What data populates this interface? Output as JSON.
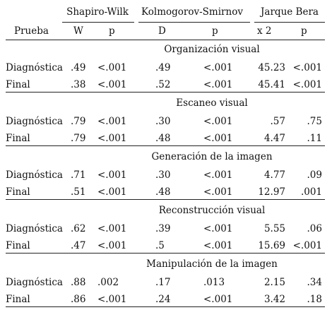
{
  "header": {
    "groups": [
      "Shapiro-Wilk",
      "Kolmogorov-Smirnov",
      "Jarque Bera"
    ],
    "columns": [
      "Prueba",
      "W",
      "p",
      "D",
      "p",
      "x  2",
      "p"
    ]
  },
  "sections": [
    {
      "title": "Organización visual",
      "rows": [
        {
          "prueba": "Diagnóstica",
          "w": ".49",
          "sw_p": "<.001",
          "d": ".49",
          "ks_p": "<.001",
          "x2": "45.23",
          "jb_p": "<.001"
        },
        {
          "prueba": "Final",
          "w": ".38",
          "sw_p": "<.001",
          "d": ".52",
          "ks_p": "<.001",
          "x2": "45.41",
          "jb_p": "<.001"
        }
      ]
    },
    {
      "title": "Escaneo visual",
      "rows": [
        {
          "prueba": "Diagnóstica",
          "w": ".79",
          "sw_p": "<.001",
          "d": ".30",
          "ks_p": "<.001",
          "x2": ".57",
          "jb_p": ".75"
        },
        {
          "prueba": "Final",
          "w": ".79",
          "sw_p": "<.001",
          "d": ".48",
          "ks_p": "<.001",
          "x2": "4.47",
          "jb_p": ".11"
        }
      ]
    },
    {
      "title": "Generación de la imagen",
      "rows": [
        {
          "prueba": "Diagnóstica",
          "w": ".71",
          "sw_p": "<.001",
          "d": ".30",
          "ks_p": "<.001",
          "x2": "4.77",
          "jb_p": ".09"
        },
        {
          "prueba": "Final",
          "w": ".51",
          "sw_p": "<.001",
          "d": ".48",
          "ks_p": "<.001",
          "x2": "12.97",
          "jb_p": ".001"
        }
      ]
    },
    {
      "title": "Reconstrucción visual",
      "rows": [
        {
          "prueba": "Diagnóstica",
          "w": ".62",
          "sw_p": "<.001",
          "d": ".39",
          "ks_p": "<.001",
          "x2": "5.55",
          "jb_p": ".06"
        },
        {
          "prueba": "Final",
          "w": ".47",
          "sw_p": "<.001",
          "d": ".5",
          "ks_p": "<.001",
          "x2": "15.69",
          "jb_p": "<.001"
        }
      ]
    },
    {
      "title": "Manipulación de la imagen",
      "rows": [
        {
          "prueba": "Diagnóstica",
          "w": ".88",
          "sw_p": ".002",
          "d": ".17",
          "ks_p": ".013",
          "x2": "2.15",
          "jb_p": ".34"
        },
        {
          "prueba": "Final",
          "w": ".86",
          "sw_p": "<.001",
          "d": ".24",
          "ks_p": "<.001",
          "x2": "3.42",
          "jb_p": ".18"
        }
      ]
    }
  ]
}
